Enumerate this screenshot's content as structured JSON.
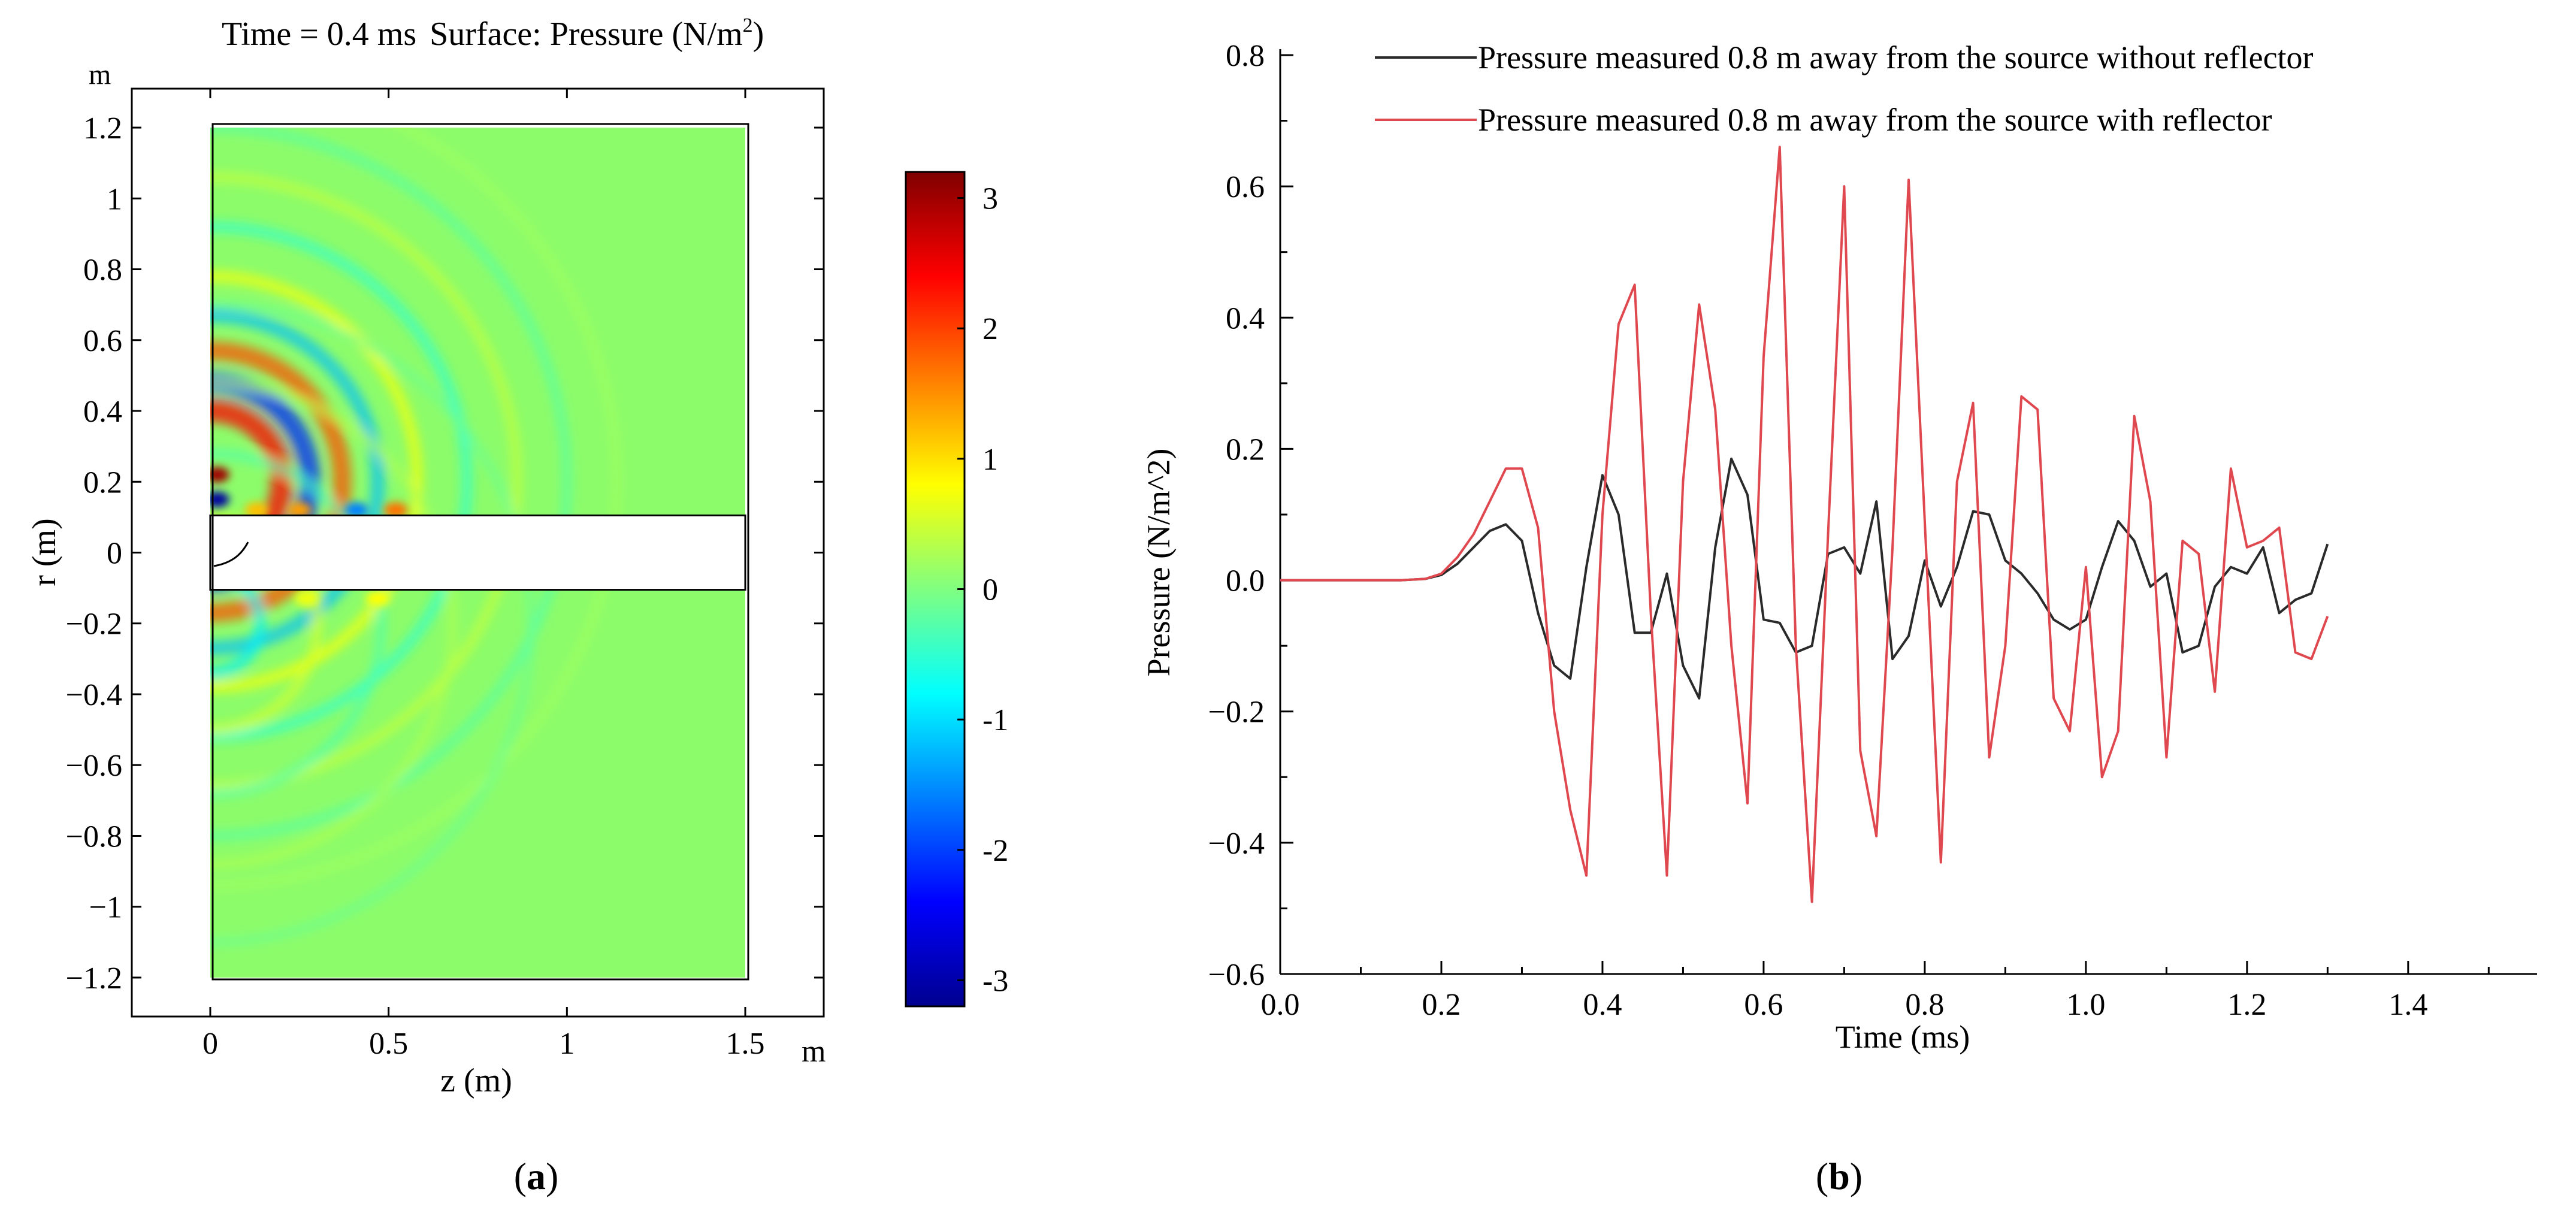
{
  "panel_a": {
    "title_prefix": "Time",
    "title_eq": " = 0.4 ms",
    "title_surface": "Surface: Pressure (N/m",
    "title_sup": "2",
    "title_close": ")",
    "y_unit": "m",
    "x_unit": "m",
    "xlabel": "z (m)",
    "ylabel": "r (m)",
    "caption": "a"
  },
  "panel_b": {
    "caption": "b"
  },
  "colors": {
    "field_background": "#8cfc6a",
    "series_without": "#2a2a2a",
    "series_with": "#e0484f"
  },
  "chart_data": [
    {
      "type": "heatmap",
      "title": "Time = 0.4 ms Surface: Pressure (N/m2)",
      "xlabel": "z (m)",
      "ylabel": "r (m)",
      "xlim": [
        -0.22,
        1.72
      ],
      "ylim": [
        -1.31,
        1.31
      ],
      "domain": {
        "z": [
          0,
          1.5
        ],
        "r": [
          -1.2,
          1.2
        ]
      },
      "excluded_band_r": [
        -0.105,
        0.105
      ],
      "x_ticks": [
        0,
        0.5,
        1,
        1.5
      ],
      "x_tick_labels": [
        "0",
        "0.5",
        "1",
        "1.5"
      ],
      "y_ticks": [
        -1.2,
        -1,
        -0.8,
        -0.6,
        -0.4,
        -0.2,
        0,
        0.2,
        0.4,
        0.6,
        0.8,
        1,
        1.2
      ],
      "y_tick_labels": [
        "−1.2",
        "−1",
        "−0.8",
        "−0.6",
        "−0.4",
        "−0.2",
        "0",
        "0.2",
        "0.4",
        "0.6",
        "0.8",
        "1",
        "1.2"
      ],
      "colorbar": {
        "range": [
          -3.2,
          3.2
        ],
        "ticks": [
          3,
          2,
          1,
          0,
          -1,
          -2,
          -3
        ],
        "tick_labels": [
          "3",
          "2",
          "1",
          "0",
          "-1",
          "-2",
          "-3"
        ],
        "colormap": "jet"
      },
      "field_features": [
        {
          "type": "ring",
          "z": 0,
          "r": 0.2,
          "radius": 0.2,
          "value": 2.4
        },
        {
          "type": "ring",
          "z": 0,
          "r": 0.2,
          "radius": 0.28,
          "value": -2.2
        },
        {
          "type": "ring",
          "z": 0,
          "r": 0.2,
          "radius": 0.37,
          "value": 1.9
        },
        {
          "type": "ring",
          "z": 0,
          "r": 0.2,
          "radius": 0.47,
          "value": -1.2
        },
        {
          "type": "ring",
          "z": 0,
          "r": 0.2,
          "radius": 0.58,
          "value": 0.8
        },
        {
          "type": "ring",
          "z": 0,
          "r": 0.2,
          "radius": 0.72,
          "value": -0.6
        },
        {
          "type": "ring",
          "z": 0,
          "r": 0.2,
          "radius": 0.86,
          "value": 0.5
        },
        {
          "type": "ring",
          "z": 0,
          "r": 0.2,
          "radius": 1.0,
          "value": -0.35
        },
        {
          "type": "ring",
          "z": 0,
          "r": 0.2,
          "radius": 1.14,
          "value": 0.25
        },
        {
          "type": "ring",
          "z": 0,
          "r": -0.2,
          "radius": 0.14,
          "value": -0.9
        },
        {
          "type": "ring",
          "z": 0,
          "r": -0.2,
          "radius": 0.3,
          "value": 0.6
        },
        {
          "type": "ring",
          "z": 0,
          "r": -0.2,
          "radius": 0.48,
          "value": -0.4
        },
        {
          "type": "ring",
          "z": 0,
          "r": -0.2,
          "radius": 0.68,
          "value": 0.35
        },
        {
          "type": "ring",
          "z": 0,
          "r": -0.2,
          "radius": 0.9,
          "value": -0.2
        },
        {
          "type": "spot",
          "z": 0.02,
          "r": 0.22,
          "value": 3.0
        },
        {
          "type": "spot",
          "z": 0.02,
          "r": 0.15,
          "value": -3.0
        },
        {
          "type": "spot",
          "z": 0.13,
          "r": 0.12,
          "value": 1.2
        },
        {
          "type": "spot",
          "z": 0.25,
          "r": 0.12,
          "value": 1.4
        },
        {
          "type": "spot",
          "z": 0.41,
          "r": 0.12,
          "value": -1.6
        },
        {
          "type": "spot",
          "z": 0.52,
          "r": 0.12,
          "value": 1.7
        },
        {
          "type": "spot",
          "z": 0.47,
          "r": -0.13,
          "value": 0.8
        },
        {
          "type": "spot",
          "z": 0.27,
          "r": -0.13,
          "value": 0.7
        }
      ]
    },
    {
      "type": "line",
      "xlabel": "Time (ms)",
      "ylabel": "Pressure  (N/m^2)",
      "xlim": [
        0,
        1.56
      ],
      "ylim": [
        -0.6,
        0.8
      ],
      "x_ticks": [
        0,
        0.2,
        0.4,
        0.6,
        0.8,
        1.0,
        1.2,
        1.4
      ],
      "x_tick_labels": [
        "0.0",
        "0.2",
        "0.4",
        "0.6",
        "0.8",
        "1.0",
        "1.2",
        "1.4"
      ],
      "y_ticks": [
        -0.6,
        -0.4,
        -0.2,
        0,
        0.2,
        0.4,
        0.6,
        0.8
      ],
      "y_tick_labels": [
        "−0.6",
        "−0.4",
        "−0.2",
        "0.0",
        "0.2",
        "0.4",
        "0.6",
        "0.8"
      ],
      "legend_position": "top-right",
      "series": [
        {
          "name": "Pressure measured 0.8 m away from the source without reflector",
          "color": "#2a2a2a",
          "x": [
            0,
            0.05,
            0.1,
            0.15,
            0.18,
            0.2,
            0.22,
            0.24,
            0.26,
            0.28,
            0.3,
            0.32,
            0.34,
            0.36,
            0.38,
            0.4,
            0.42,
            0.44,
            0.46,
            0.48,
            0.5,
            0.52,
            0.54,
            0.56,
            0.58,
            0.6,
            0.62,
            0.64,
            0.66,
            0.68,
            0.7,
            0.72,
            0.74,
            0.76,
            0.78,
            0.8,
            0.82,
            0.84,
            0.86,
            0.88,
            0.9,
            0.92,
            0.94,
            0.96,
            0.98,
            1.0,
            1.02,
            1.04,
            1.06,
            1.08,
            1.1,
            1.12,
            1.14,
            1.16,
            1.18,
            1.2,
            1.22,
            1.24,
            1.26,
            1.28,
            1.3
          ],
          "y": [
            0,
            0,
            0,
            0,
            0.002,
            0.008,
            0.025,
            0.05,
            0.075,
            0.085,
            0.06,
            -0.05,
            -0.13,
            -0.15,
            0.02,
            0.16,
            0.1,
            -0.08,
            -0.08,
            0.01,
            -0.13,
            -0.18,
            0.05,
            0.185,
            0.13,
            -0.06,
            -0.065,
            -0.11,
            -0.1,
            0.04,
            0.05,
            0.01,
            0.12,
            -0.12,
            -0.085,
            0.03,
            -0.04,
            0.02,
            0.105,
            0.1,
            0.03,
            0.01,
            -0.02,
            -0.06,
            -0.075,
            -0.06,
            0.02,
            0.09,
            0.06,
            -0.01,
            0.01,
            -0.11,
            -0.1,
            -0.01,
            0.02,
            0.01,
            0.05,
            -0.05,
            -0.03,
            -0.02,
            0.055
          ]
        },
        {
          "name": "Pressure measured 0.8 m away from the source with reflector",
          "color": "#e0484f",
          "x": [
            0,
            0.05,
            0.1,
            0.15,
            0.18,
            0.2,
            0.22,
            0.24,
            0.26,
            0.28,
            0.3,
            0.32,
            0.34,
            0.36,
            0.38,
            0.4,
            0.42,
            0.44,
            0.46,
            0.48,
            0.5,
            0.52,
            0.54,
            0.56,
            0.58,
            0.6,
            0.62,
            0.64,
            0.66,
            0.68,
            0.7,
            0.72,
            0.74,
            0.76,
            0.78,
            0.8,
            0.82,
            0.84,
            0.86,
            0.88,
            0.9,
            0.92,
            0.94,
            0.96,
            0.98,
            1.0,
            1.02,
            1.04,
            1.06,
            1.08,
            1.1,
            1.12,
            1.14,
            1.16,
            1.18,
            1.2,
            1.22,
            1.24,
            1.26,
            1.28,
            1.3
          ],
          "y": [
            0,
            0,
            0,
            0,
            0.002,
            0.01,
            0.035,
            0.07,
            0.12,
            0.17,
            0.17,
            0.08,
            -0.2,
            -0.35,
            -0.45,
            0.1,
            0.39,
            0.45,
            -0.05,
            -0.45,
            0.15,
            0.42,
            0.26,
            -0.1,
            -0.34,
            0.34,
            0.66,
            -0.1,
            -0.49,
            0.07,
            0.6,
            -0.26,
            -0.39,
            0.05,
            0.61,
            0.09,
            -0.43,
            0.15,
            0.27,
            -0.27,
            -0.1,
            0.28,
            0.26,
            -0.18,
            -0.23,
            0.02,
            -0.3,
            -0.23,
            0.25,
            0.12,
            -0.27,
            0.06,
            0.04,
            -0.17,
            0.17,
            0.05,
            0.06,
            0.08,
            -0.11,
            -0.12,
            -0.055
          ]
        }
      ]
    }
  ]
}
